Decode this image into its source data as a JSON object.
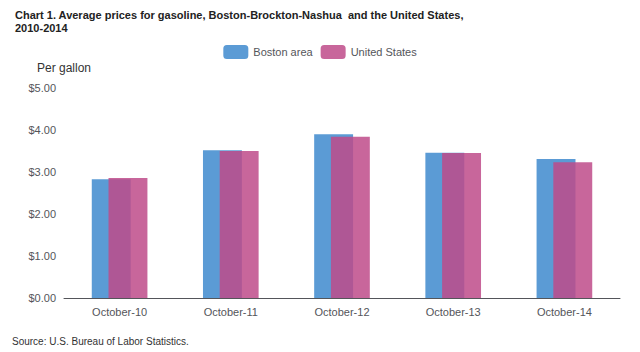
{
  "chart_data": {
    "type": "bar",
    "title": "Chart 1. Average prices for gasoline, Boston-Brockton-Nashua  and the United States,",
    "subtitle": "2010-2014",
    "y_label": "Per gallon",
    "annotations": [
      "Source: U.S. Bureau of Labor Statistics."
    ],
    "categories": [
      "October-10",
      "October-11",
      "October-12",
      "October-13",
      "October-14"
    ],
    "series": [
      {
        "name": "Boston area",
        "color": "#5B9BD5",
        "values": [
          2.83,
          3.52,
          3.9,
          3.46,
          3.31
        ]
      },
      {
        "name": "United States",
        "color": "#BE4B8A",
        "values": [
          2.86,
          3.5,
          3.84,
          3.45,
          3.23
        ]
      }
    ],
    "ylim": [
      0,
      5.0
    ],
    "yticks": [
      {
        "value": 0.0,
        "label": "$0.00"
      },
      {
        "value": 1.0,
        "label": "$1.00"
      },
      {
        "value": 2.0,
        "label": "$2.00"
      },
      {
        "value": 3.0,
        "label": "$3.00"
      },
      {
        "value": 4.0,
        "label": "$4.00"
      },
      {
        "value": 5.0,
        "label": "$5.00"
      }
    ],
    "grid": false,
    "legend": "top"
  }
}
